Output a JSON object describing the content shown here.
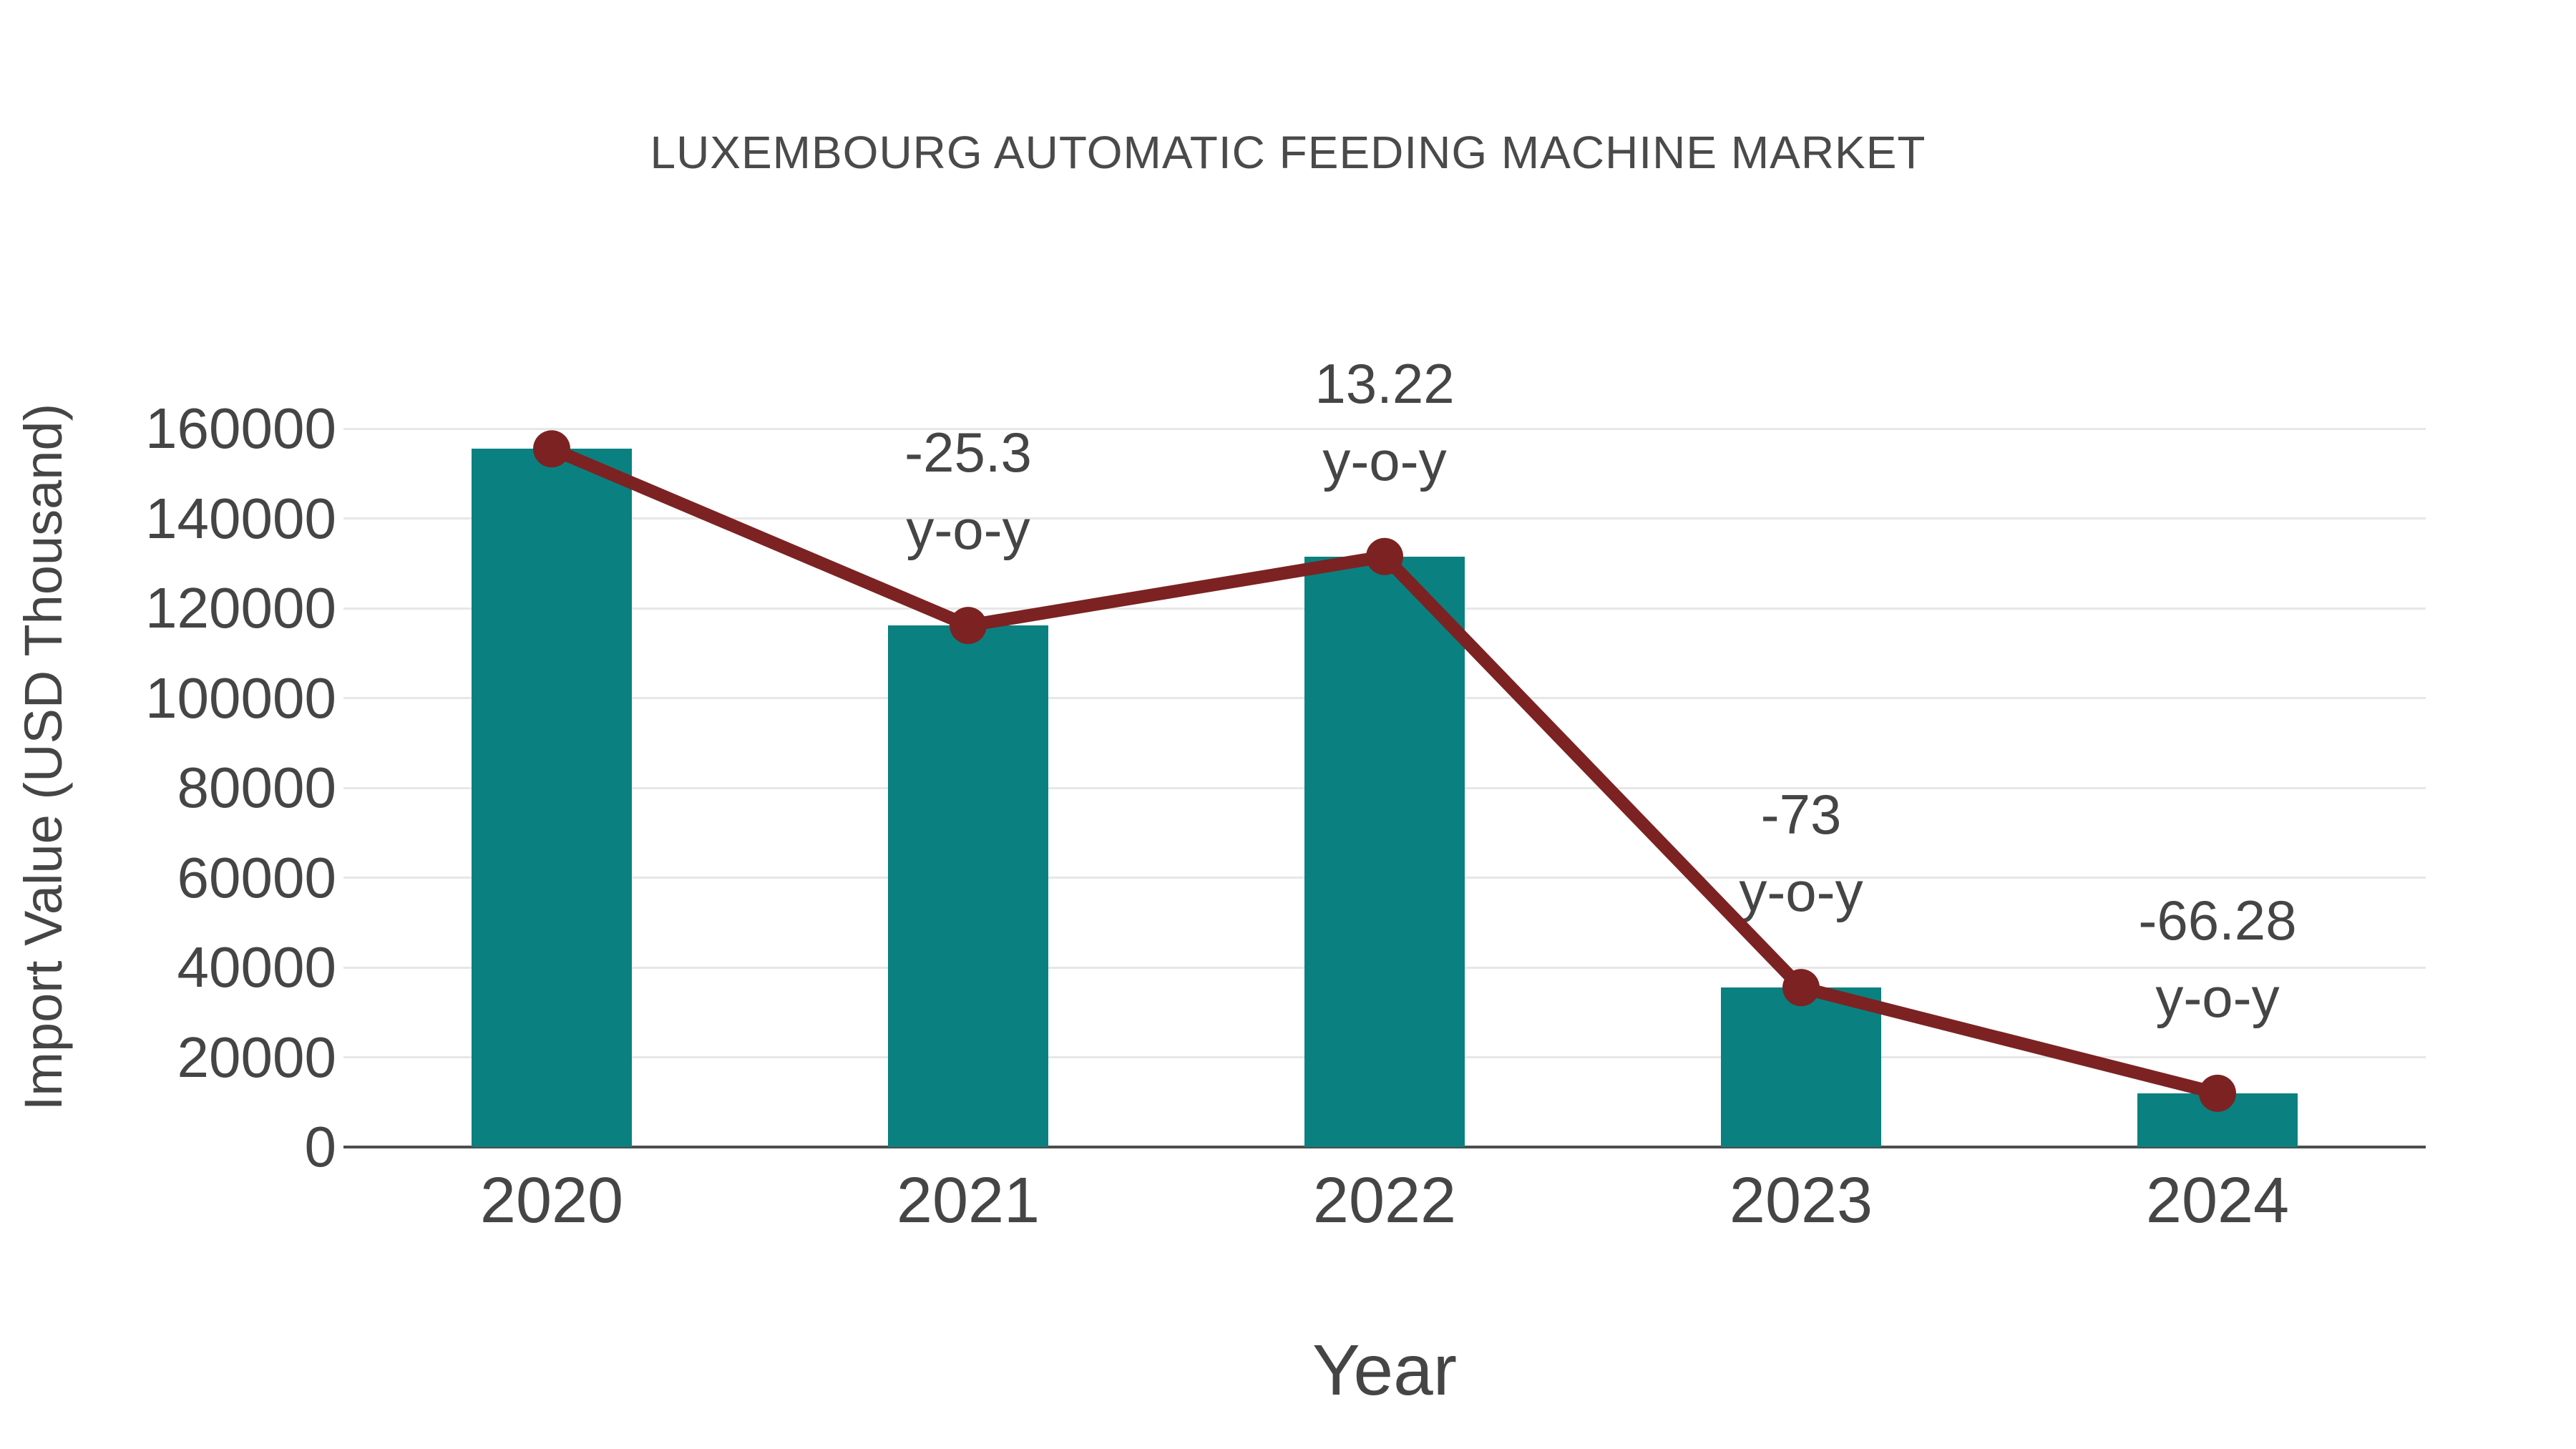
{
  "title": "LUXEMBOURG AUTOMATIC FEEDING MACHINE MARKET",
  "colors": {
    "bar": "#0a8180",
    "line": "#7c2222",
    "text": "#454545",
    "grid": "#e7e7e7",
    "axis": "#4d4d4d",
    "background": "#ffffff"
  },
  "chart_data": {
    "type": "bar",
    "title": "LUXEMBOURG AUTOMATIC FEEDING MACHINE MARKET",
    "xlabel": "Year",
    "ylabel": "Import Value (USD Thousand)",
    "categories": [
      "2020",
      "2021",
      "2022",
      "2023",
      "2024"
    ],
    "series": [
      {
        "name": "Import Value (USD Thousand)",
        "type": "bar",
        "values": [
          155500,
          116158,
          131515,
          35509,
          11974
        ]
      },
      {
        "name": "y-o-y trend line",
        "type": "line",
        "values": [
          155500,
          116158,
          131515,
          35509,
          11974
        ]
      }
    ],
    "annotations": [
      {
        "category": "2021",
        "growth": "-25.3",
        "suffix": "y-o-y"
      },
      {
        "category": "2022",
        "growth": "13.22",
        "suffix": "y-o-y"
      },
      {
        "category": "2023",
        "growth": "-73",
        "suffix": "y-o-y"
      },
      {
        "category": "2024",
        "growth": "-66.28",
        "suffix": "y-o-y"
      }
    ],
    "ylim": [
      0,
      160000
    ],
    "yticks": [
      0,
      20000,
      40000,
      60000,
      80000,
      100000,
      120000,
      140000,
      160000
    ],
    "grid": "horizontal",
    "legend": "none"
  }
}
